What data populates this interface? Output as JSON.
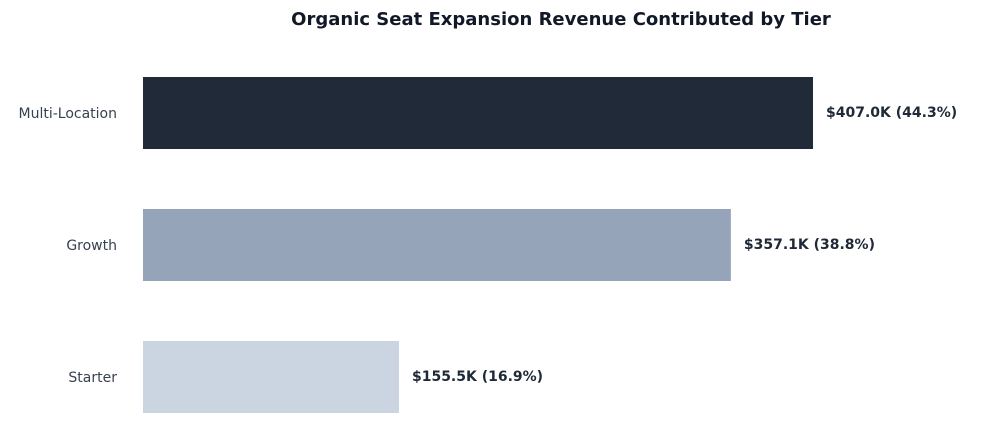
{
  "chart_data": {
    "type": "bar",
    "orientation": "horizontal",
    "title": "Organic Seat Expansion Revenue Contributed by Tier",
    "xlabel": "",
    "ylabel": "",
    "categories": [
      "Multi-Location",
      "Growth",
      "Starter"
    ],
    "values": [
      407.0,
      357.1,
      155.5
    ],
    "unit": "$K",
    "data_labels": [
      "$407.0K (44.3%)",
      "$357.1K (38.8%)",
      "$155.5K (16.9%)"
    ],
    "percent_share": [
      44.3,
      38.8,
      16.9
    ],
    "colors": [
      "#212a39",
      "#95a4b8",
      "#cbd5e1"
    ],
    "xlim": [
      0,
      407.0
    ],
    "grid": false,
    "legend": "none"
  }
}
